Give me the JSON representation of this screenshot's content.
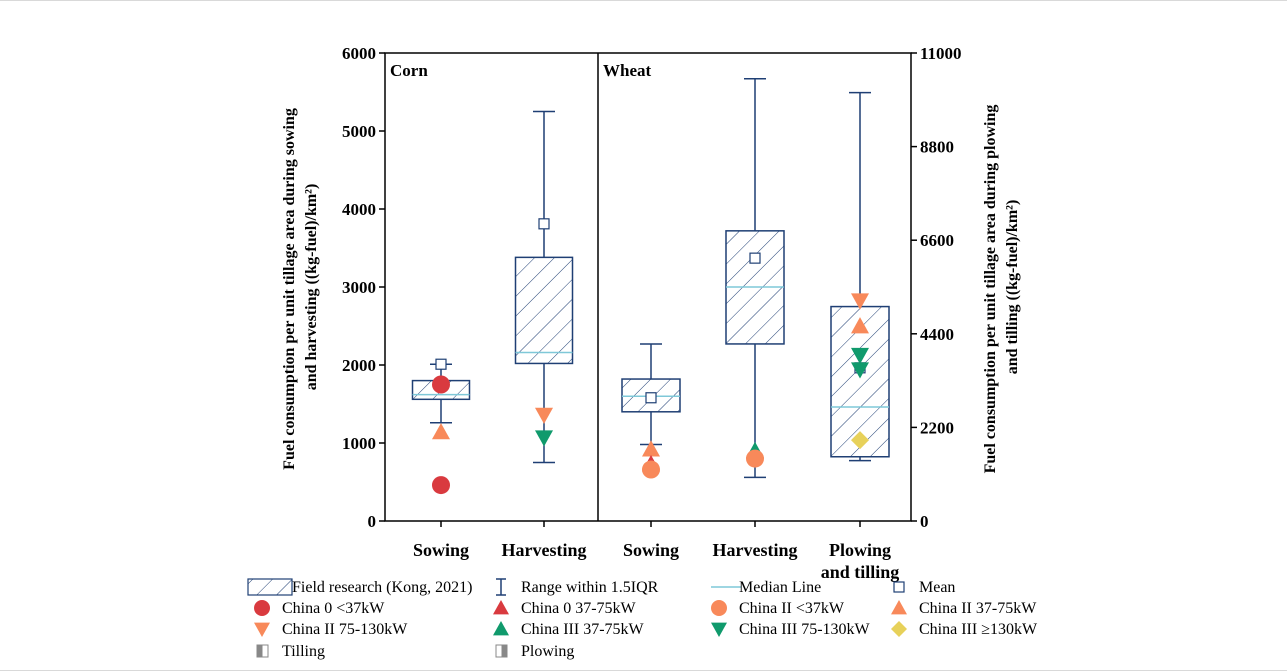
{
  "chart_data": {
    "type": "box",
    "panels": [
      {
        "label": "Corn",
        "axis": "left"
      },
      {
        "label": "Wheat",
        "axis": "mixed"
      }
    ],
    "categories": [
      "Sowing",
      "Harvesting",
      "Sowing",
      "Harvesting",
      "Plowing and tilling"
    ],
    "category_lines": [
      [
        "Sowing"
      ],
      [
        "Harvesting"
      ],
      [
        "Sowing"
      ],
      [
        "Harvesting"
      ],
      [
        "Plowing",
        "and tilling"
      ]
    ],
    "y_left": {
      "label_lines": [
        "Fuel consumption per unit tillage area during sowing",
        "and harvesting ((kg-fuel)/km²)"
      ],
      "lim": [
        0,
        6000
      ],
      "ticks": [
        0,
        1000,
        2000,
        3000,
        4000,
        5000,
        6000
      ]
    },
    "y_right": {
      "label_lines": [
        "Fuel consumption per unit tillage area during plowing",
        "and tilling ((kg-fuel)/km²)"
      ],
      "lim": [
        0,
        11000
      ],
      "ticks": [
        0,
        2200,
        4400,
        6600,
        8800,
        11000
      ]
    },
    "boxes": [
      {
        "category": "Sowing (Corn)",
        "axis": "left",
        "whisker_low": 1260,
        "q1": 1560,
        "median": 1620,
        "q3": 1800,
        "whisker_high": 2010,
        "mean": 2010
      },
      {
        "category": "Harvesting (Corn)",
        "axis": "left",
        "whisker_low": 750,
        "q1": 2020,
        "median": 2160,
        "q3": 3380,
        "whisker_high": 5250,
        "mean": 3810
      },
      {
        "category": "Sowing (Wheat)",
        "axis": "left",
        "whisker_low": 980,
        "q1": 1400,
        "median": 1600,
        "q3": 1820,
        "whisker_high": 2270,
        "mean": 1580
      },
      {
        "category": "Harvesting (Wheat)",
        "axis": "left",
        "whisker_low": 560,
        "q1": 2270,
        "median": 3000,
        "q3": 3720,
        "whisker_high": 5670,
        "mean": 3370
      },
      {
        "category": "Plowing and tilling (Wheat)",
        "axis": "right",
        "whisker_low": 1420,
        "q1": 1510,
        "median": 2680,
        "q3": 5040,
        "whisker_high": 10070,
        "mean": 3600
      }
    ],
    "points": [
      {
        "category": 0,
        "series": "China 0 <37kW",
        "value": 1750
      },
      {
        "category": 0,
        "series": "China 0 <37kW",
        "value": 460
      },
      {
        "category": 0,
        "series": "China II 37-75kW",
        "value": 1140
      },
      {
        "category": 1,
        "series": "China II 75-130kW",
        "value": 1360
      },
      {
        "category": 1,
        "series": "China III 75-130kW",
        "value": 1070
      },
      {
        "category": 2,
        "series": "China II 37-75kW",
        "value": 920
      },
      {
        "category": 2,
        "series": "China 0 37-75kW",
        "value": 730
      },
      {
        "category": 2,
        "series": "China II <37kW",
        "value": 660
      },
      {
        "category": 3,
        "series": "China III 37-75kW",
        "value": 900
      },
      {
        "category": 3,
        "series": "China II <37kW",
        "value": 800
      },
      {
        "category": 4,
        "series": "China II 75-130kW",
        "value": 5180
      },
      {
        "category": 4,
        "series": "China II 37-75kW",
        "value": 4580
      },
      {
        "category": 4,
        "series": "China III 75-130kW",
        "value": 3900
      },
      {
        "category": 4,
        "series": "China III 75-130kW",
        "value": 3560
      },
      {
        "category": 4,
        "series": "China III ≥130kW",
        "value": 1900
      }
    ],
    "legend": [
      {
        "key": "field",
        "label": "Field research (Kong, 2021)"
      },
      {
        "key": "range",
        "label": "Range within 1.5IQR"
      },
      {
        "key": "median",
        "label": "Median Line"
      },
      {
        "key": "mean",
        "label": "Mean"
      },
      {
        "key": "c0_lt37",
        "label": "China 0 <37kW"
      },
      {
        "key": "c0_37_75",
        "label": "China 0 37-75kW"
      },
      {
        "key": "c2_lt37",
        "label": "China II <37kW"
      },
      {
        "key": "c2_37_75",
        "label": "China II 37-75kW"
      },
      {
        "key": "c2_75_130",
        "label": "China II 75-130kW"
      },
      {
        "key": "c3_37_75",
        "label": "China III 37-75kW"
      },
      {
        "key": "c3_75_130",
        "label": "China III 75-130kW"
      },
      {
        "key": "c3_ge130",
        "label": "China III ≥130kW"
      },
      {
        "key": "tilling",
        "label": "Tilling"
      },
      {
        "key": "plowing",
        "label": "Plowing"
      }
    ],
    "colors": {
      "box": "#1f3f74",
      "median": "#7fc8d8",
      "red": "#d93a3f",
      "orange": "#f8895a",
      "green": "#109a6c",
      "yellow": "#e7d15a"
    }
  }
}
